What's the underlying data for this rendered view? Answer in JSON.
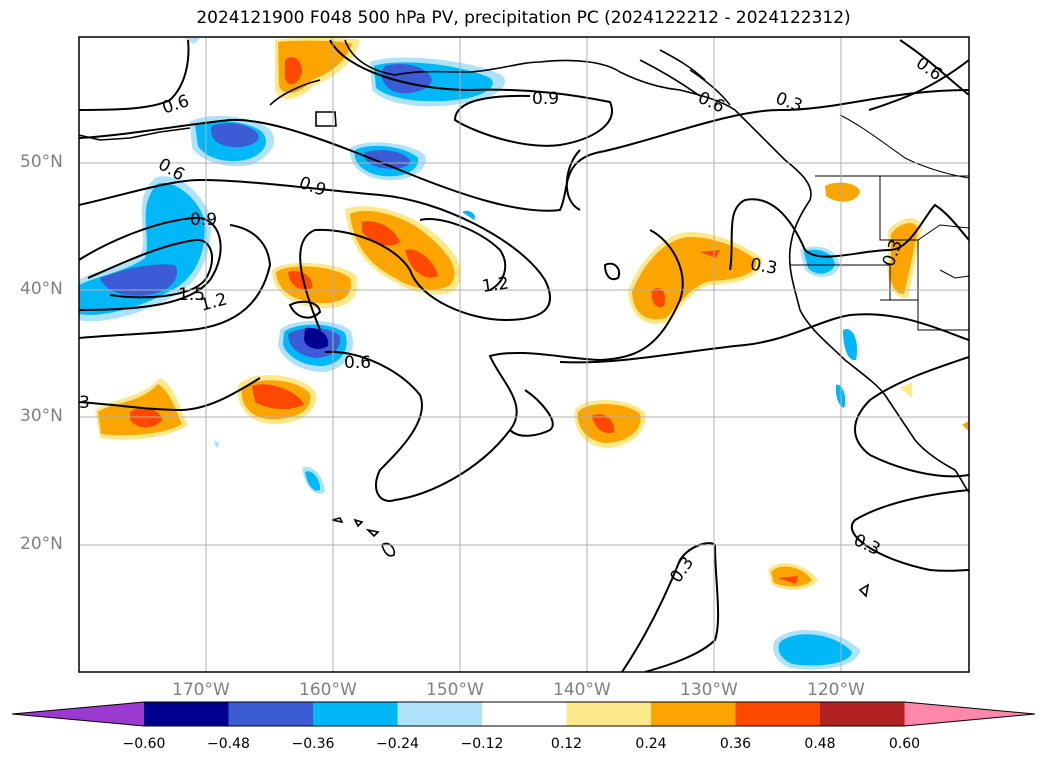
{
  "title": "2024121900 F048 500 hPa PV, precipitation PC (2024122212 - 2024122312)",
  "map": {
    "extent": {
      "lon_min": -180,
      "lon_max": -110,
      "lat_min": 10,
      "lat_max": 60
    },
    "lat_ticks": [
      "50°N",
      "40°N",
      "30°N",
      "20°N"
    ],
    "lon_ticks": [
      "170°W",
      "160°W",
      "150°W",
      "140°W",
      "130°W",
      "120°W"
    ],
    "gridlines": true
  },
  "contour_labels": [
    "0.6",
    "0.6",
    "0.9",
    "0.9",
    "1.5",
    "1.2",
    "1.2",
    "0.6",
    "0.9",
    "0.6",
    "0.3",
    "0.6",
    "0.3",
    "0.3",
    "3",
    "0.3",
    "0.3"
  ],
  "colorbar": {
    "ticks": [
      "−0.60",
      "−0.48",
      "−0.36",
      "−0.24",
      "−0.12",
      "0.12",
      "0.24",
      "0.36",
      "0.48",
      "0.60"
    ],
    "colors": [
      "#9b3ad1",
      "#000090",
      "#3b5cd4",
      "#00b8f8",
      "#aee2fa",
      "#ffffff",
      "#fde88a",
      "#fca500",
      "#fd4800",
      "#b22222",
      "#ff88aa"
    ]
  },
  "palette": {
    "deep_blue": "#000090",
    "blue": "#3b5cd4",
    "cyan": "#00b8f8",
    "light_cyan": "#aee2fa",
    "yellow": "#fde88a",
    "orange": "#fca500",
    "red_orange": "#fd4800"
  }
}
